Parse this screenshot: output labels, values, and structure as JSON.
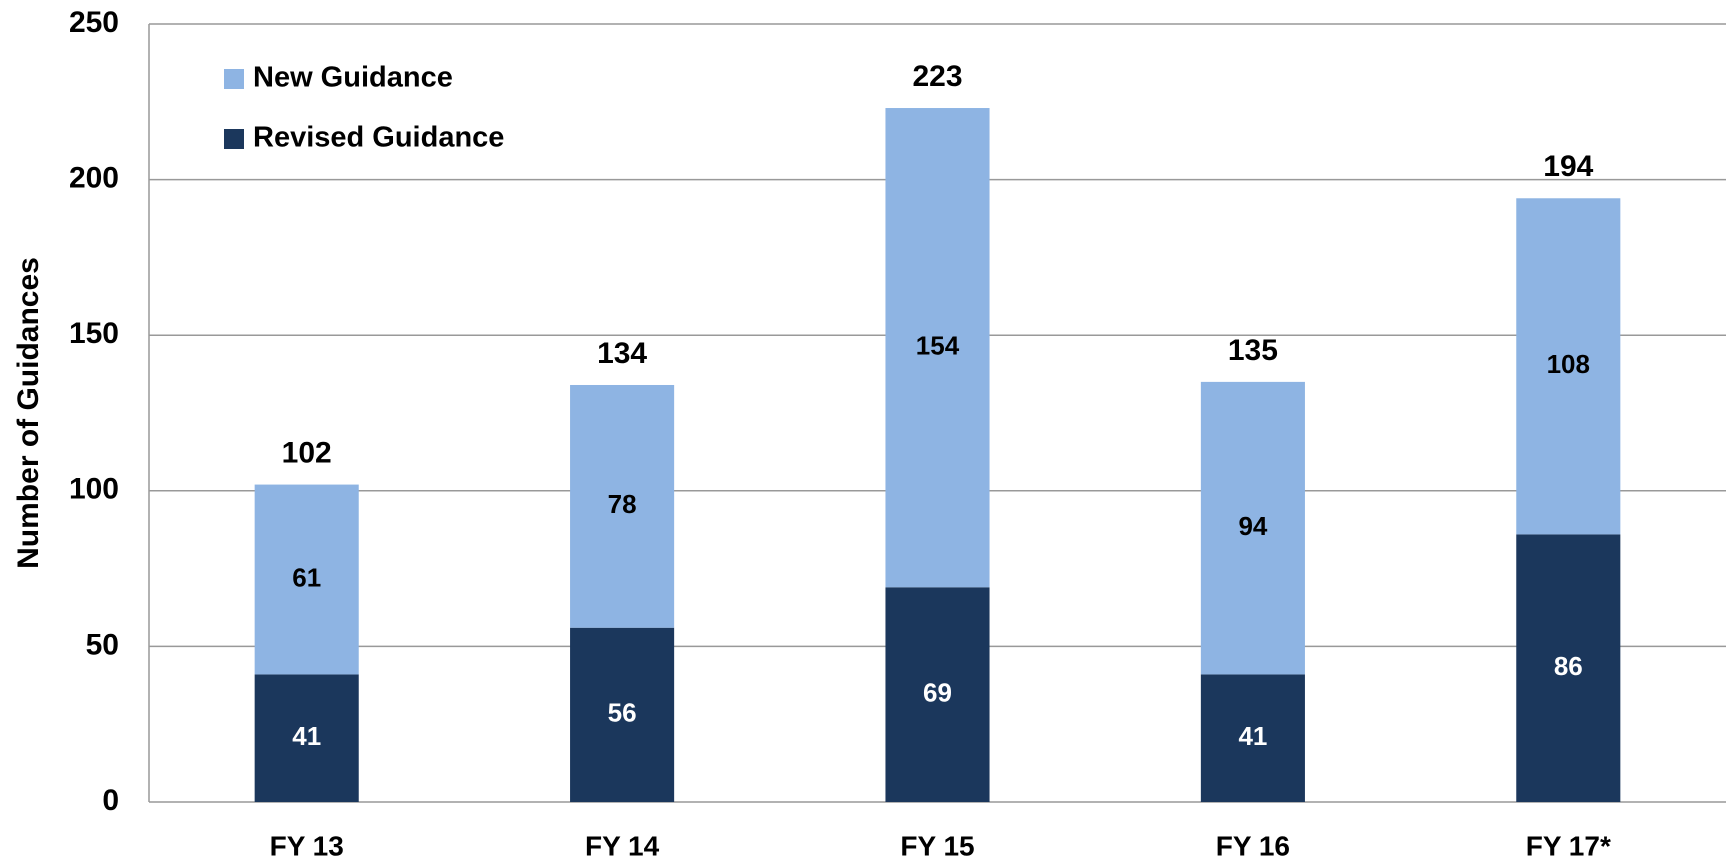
{
  "chart_data": {
    "type": "stacked_bar",
    "y_label": "Number of Guidances",
    "categories": [
      "FY 13",
      "FY 14",
      "FY 15",
      "FY 16",
      "FY 17*"
    ],
    "series": [
      {
        "name": "New Guidance",
        "color": "#8eb4e3",
        "values": [
          61,
          78,
          154,
          94,
          108
        ]
      },
      {
        "name": "Revised Guidance",
        "color": "#1b375c",
        "values": [
          41,
          56,
          69,
          41,
          86
        ]
      }
    ],
    "totals": [
      102,
      134,
      223,
      135,
      194
    ],
    "ylim": [
      0,
      250
    ],
    "yticks": [
      0,
      50,
      100,
      150,
      200,
      250
    ],
    "grid": true,
    "legend": "top-left"
  }
}
